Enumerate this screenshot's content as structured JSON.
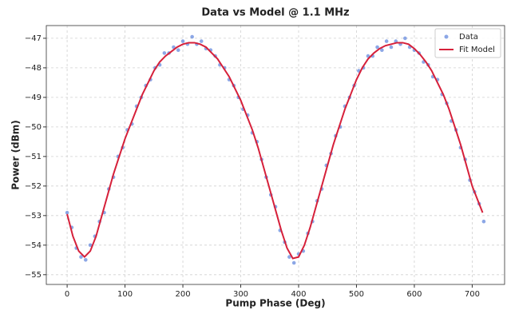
{
  "chart_data": {
    "type": "scatter-fit",
    "title": "Data vs Model @ 1.1 MHz",
    "x_label": "Pump Phase (Deg)",
    "y_label": "Power (dBm)",
    "xlim": [
      -36,
      756
    ],
    "ylim": [
      -55.33,
      -46.57
    ],
    "xticks": [
      0,
      100,
      200,
      300,
      400,
      500,
      600,
      700
    ],
    "yticks": [
      {
        "value": -55,
        "label": "−55"
      },
      {
        "value": -54,
        "label": "−54"
      },
      {
        "value": -53,
        "label": "−53"
      },
      {
        "value": -52,
        "label": "−52"
      },
      {
        "value": -51,
        "label": "−51"
      },
      {
        "value": -50,
        "label": "−50"
      },
      {
        "value": -49,
        "label": "−49"
      },
      {
        "value": -48,
        "label": "−48"
      },
      {
        "value": -47,
        "label": "−47"
      }
    ],
    "grid": true,
    "legend_position": "upper right",
    "series": [
      {
        "name": "Data",
        "kind": "scatter",
        "color": "#5b82dc",
        "x": [
          0,
          8,
          16,
          24,
          32,
          40,
          48,
          56,
          64,
          72,
          80,
          88,
          96,
          104,
          112,
          120,
          128,
          136,
          144,
          152,
          160,
          168,
          176,
          184,
          192,
          200,
          208,
          216,
          224,
          232,
          240,
          248,
          256,
          264,
          272,
          280,
          288,
          296,
          304,
          312,
          320,
          328,
          336,
          344,
          352,
          360,
          368,
          376,
          384,
          392,
          400,
          408,
          416,
          424,
          432,
          440,
          448,
          456,
          464,
          472,
          480,
          488,
          496,
          504,
          512,
          520,
          528,
          536,
          544,
          552,
          560,
          568,
          576,
          584,
          592,
          600,
          608,
          616,
          624,
          632,
          640,
          648,
          656,
          664,
          672,
          680,
          688,
          696,
          704,
          712,
          720
        ],
        "values": [
          -52.9,
          -53.4,
          -54.1,
          -54.4,
          -54.5,
          -54.0,
          -53.7,
          -53.2,
          -52.9,
          -52.1,
          -51.7,
          -51.0,
          -50.7,
          -50.1,
          -49.9,
          -49.3,
          -49.0,
          -48.6,
          -48.4,
          -48.0,
          -47.9,
          -47.5,
          -47.5,
          -47.3,
          -47.4,
          -47.1,
          -47.2,
          -46.95,
          -47.2,
          -47.1,
          -47.35,
          -47.4,
          -47.6,
          -47.9,
          -48.0,
          -48.4,
          -48.6,
          -49.0,
          -49.4,
          -49.6,
          -50.2,
          -50.5,
          -51.1,
          -51.7,
          -52.3,
          -52.7,
          -53.5,
          -53.9,
          -54.4,
          -54.6,
          -54.3,
          -54.2,
          -53.6,
          -53.2,
          -52.5,
          -52.1,
          -51.3,
          -50.9,
          -50.3,
          -50.0,
          -49.3,
          -49.0,
          -48.6,
          -48.1,
          -48.0,
          -47.6,
          -47.6,
          -47.3,
          -47.4,
          -47.1,
          -47.3,
          -47.1,
          -47.2,
          -47.0,
          -47.3,
          -47.4,
          -47.5,
          -47.8,
          -47.9,
          -48.3,
          -48.4,
          -48.9,
          -49.2,
          -49.8,
          -50.1,
          -50.7,
          -51.1,
          -51.8,
          -52.2,
          -52.6,
          -53.2
        ]
      },
      {
        "name": "Fit Model",
        "kind": "line",
        "color": "#d6203a",
        "x": [
          0,
          10,
          20,
          30,
          40,
          50,
          60,
          70,
          80,
          90,
          100,
          110,
          120,
          130,
          140,
          150,
          160,
          170,
          180,
          190,
          200,
          210,
          220,
          230,
          240,
          250,
          260,
          270,
          280,
          290,
          300,
          310,
          320,
          330,
          340,
          350,
          360,
          370,
          380,
          390,
          400,
          410,
          420,
          430,
          440,
          450,
          460,
          470,
          480,
          490,
          500,
          510,
          520,
          530,
          540,
          550,
          560,
          570,
          580,
          590,
          600,
          610,
          620,
          630,
          640,
          650,
          660,
          670,
          680,
          690,
          700,
          710,
          718
        ],
        "values": [
          -52.95,
          -53.7,
          -54.2,
          -54.4,
          -54.2,
          -53.7,
          -53.0,
          -52.3,
          -51.6,
          -51.0,
          -50.4,
          -49.9,
          -49.4,
          -48.9,
          -48.5,
          -48.1,
          -47.8,
          -47.6,
          -47.45,
          -47.3,
          -47.2,
          -47.15,
          -47.15,
          -47.2,
          -47.3,
          -47.5,
          -47.7,
          -48.0,
          -48.3,
          -48.7,
          -49.1,
          -49.6,
          -50.1,
          -50.7,
          -51.4,
          -52.1,
          -52.8,
          -53.5,
          -54.1,
          -54.45,
          -54.4,
          -54.0,
          -53.4,
          -52.7,
          -52.0,
          -51.3,
          -50.6,
          -50.0,
          -49.4,
          -48.9,
          -48.4,
          -48.0,
          -47.7,
          -47.5,
          -47.35,
          -47.25,
          -47.2,
          -47.15,
          -47.15,
          -47.2,
          -47.35,
          -47.55,
          -47.8,
          -48.1,
          -48.5,
          -48.9,
          -49.4,
          -50.0,
          -50.6,
          -51.3,
          -52.0,
          -52.5,
          -52.9
        ]
      }
    ]
  }
}
